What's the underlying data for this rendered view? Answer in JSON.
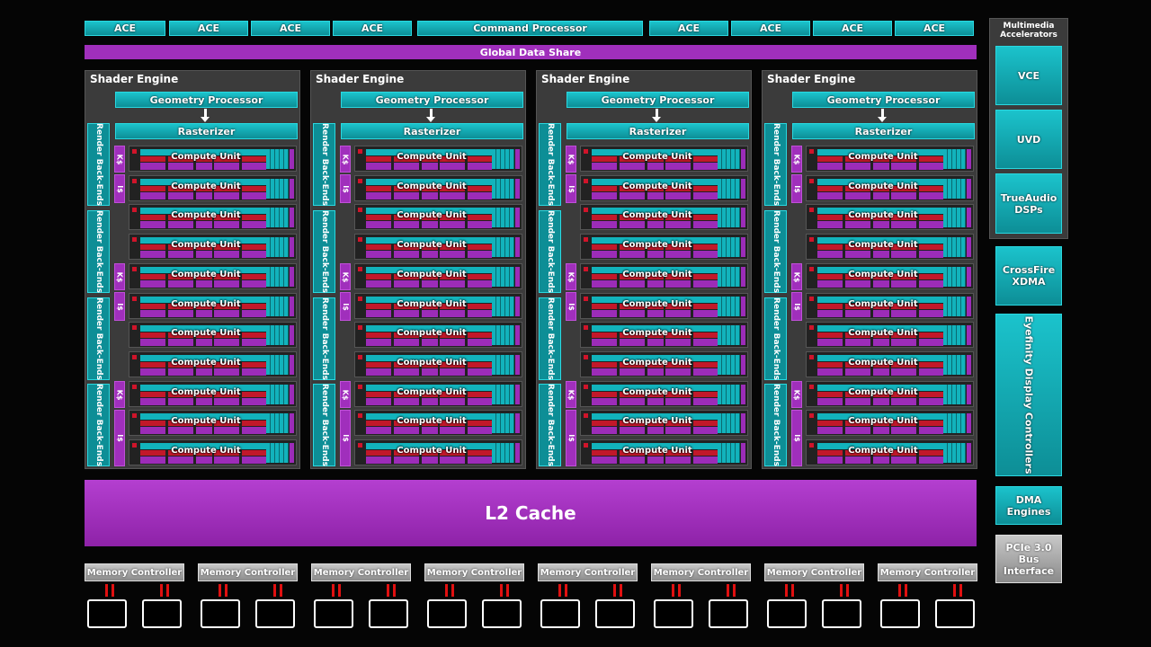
{
  "top_row": {
    "ace_left": [
      "ACE",
      "ACE",
      "ACE",
      "ACE"
    ],
    "command_processor": "Command Processor",
    "ace_right": [
      "ACE",
      "ACE",
      "ACE",
      "ACE"
    ]
  },
  "global_data_share": "Global Data Share",
  "shader_engine": {
    "title": "Shader Engine",
    "geometry_processor": "Geometry Processor",
    "rasterizer": "Rasterizer",
    "render_back_ends": "Render Back-Ends",
    "k_cache": "K$",
    "i_cache": "I$",
    "compute_unit": "Compute Unit",
    "count": 4,
    "compute_units_per_engine": 11
  },
  "l2_cache": "L2 Cache",
  "memory_controller": "Memory Controller",
  "memory_controller_count": 8,
  "right_column": {
    "multimedia_title": "Multimedia Accelerators",
    "vce": "VCE",
    "uvd": "UVD",
    "trueaudio": "TrueAudio DSPs",
    "crossfire": "CrossFire XDMA",
    "eyefinity": "Eyefinity Display Controllers",
    "dma": "DMA Engines",
    "pcie": "PCIe 3.0 Bus Interface"
  },
  "colors": {
    "cyan": "#12b3bc",
    "purple": "#a02fbc",
    "red": "#c2182a",
    "grey": "#3b3b3b"
  }
}
